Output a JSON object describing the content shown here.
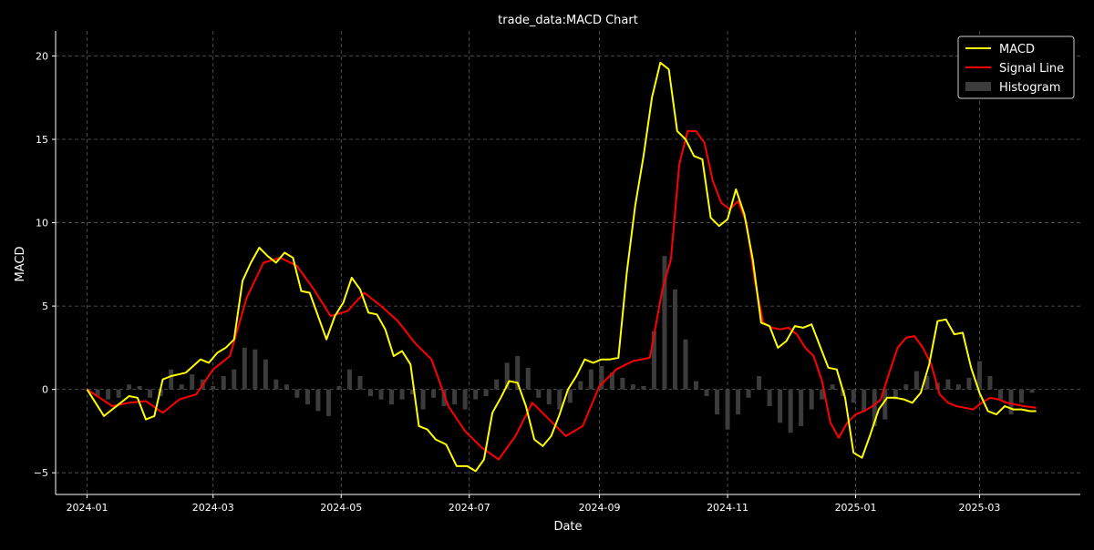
{
  "chart_data": {
    "type": "line",
    "title": "trade_data:MACD Chart",
    "xlabel": "Date",
    "ylabel": "MACD",
    "x_range": [
      "2023-12-17",
      "2025-04-18"
    ],
    "ylim": [
      -6.3,
      21.5
    ],
    "x_ticks": [
      "2024-01",
      "2024-03",
      "2024-05",
      "2024-07",
      "2024-09",
      "2024-11",
      "2025-01",
      "2025-03"
    ],
    "y_ticks": [
      -5,
      0,
      5,
      10,
      15,
      20
    ],
    "y_tick_labels": [
      "−5",
      "0",
      "5",
      "10",
      "15",
      "20"
    ],
    "grid": true,
    "legend_position": "top-right",
    "background": "#000000",
    "series": [
      {
        "name": "MACD",
        "color": "#ffff00",
        "x": [
          "2024-01-01",
          "2024-01-05",
          "2024-01-09",
          "2024-01-13",
          "2024-01-17",
          "2024-01-21",
          "2024-01-25",
          "2024-01-29",
          "2024-02-02",
          "2024-02-06",
          "2024-02-10",
          "2024-02-17",
          "2024-02-24",
          "2024-02-28",
          "2024-03-03",
          "2024-03-07",
          "2024-03-11",
          "2024-03-15",
          "2024-03-19",
          "2024-03-23",
          "2024-03-27",
          "2024-03-31",
          "2024-04-04",
          "2024-04-08",
          "2024-04-12",
          "2024-04-16",
          "2024-04-20",
          "2024-04-24",
          "2024-04-28",
          "2024-05-02",
          "2024-05-06",
          "2024-05-10",
          "2024-05-14",
          "2024-05-18",
          "2024-05-22",
          "2024-05-26",
          "2024-05-30",
          "2024-06-03",
          "2024-06-07",
          "2024-06-11",
          "2024-06-15",
          "2024-06-20",
          "2024-06-25",
          "2024-06-30",
          "2024-07-04",
          "2024-07-08",
          "2024-07-12",
          "2024-07-16",
          "2024-07-20",
          "2024-07-24",
          "2024-07-28",
          "2024-08-01",
          "2024-08-05",
          "2024-08-09",
          "2024-08-13",
          "2024-08-17",
          "2024-08-21",
          "2024-08-25",
          "2024-08-29",
          "2024-09-02",
          "2024-09-06",
          "2024-09-10",
          "2024-09-14",
          "2024-09-18",
          "2024-09-22",
          "2024-09-26",
          "2024-09-30",
          "2024-10-04",
          "2024-10-08",
          "2024-10-12",
          "2024-10-16",
          "2024-10-20",
          "2024-10-24",
          "2024-10-28",
          "2024-11-01",
          "2024-11-05",
          "2024-11-09",
          "2024-11-13",
          "2024-11-17",
          "2024-11-21",
          "2024-11-25",
          "2024-11-29",
          "2024-12-03",
          "2024-12-07",
          "2024-12-11",
          "2024-12-15",
          "2024-12-19",
          "2024-12-23",
          "2024-12-27",
          "2024-12-31",
          "2025-01-04",
          "2025-01-08",
          "2025-01-12",
          "2025-01-16",
          "2025-01-20",
          "2025-01-24",
          "2025-01-28",
          "2025-02-01",
          "2025-02-05",
          "2025-02-09",
          "2025-02-13",
          "2025-02-17",
          "2025-02-21",
          "2025-02-25",
          "2025-03-01",
          "2025-03-05",
          "2025-03-09",
          "2025-03-13",
          "2025-03-17",
          "2025-03-21",
          "2025-03-25",
          "2025-03-28"
        ],
        "values": [
          0.0,
          -0.8,
          -1.6,
          -1.2,
          -0.8,
          -0.4,
          -0.5,
          -1.8,
          -1.6,
          0.6,
          0.8,
          1.0,
          1.8,
          1.6,
          2.2,
          2.5,
          3.0,
          6.5,
          7.6,
          8.5,
          8.0,
          7.6,
          8.2,
          7.9,
          5.9,
          5.8,
          4.4,
          3.0,
          4.4,
          5.2,
          6.7,
          6.0,
          4.6,
          4.5,
          3.6,
          2.0,
          2.3,
          1.5,
          -2.2,
          -2.4,
          -3.0,
          -3.3,
          -4.6,
          -4.6,
          -4.9,
          -4.2,
          -1.4,
          -0.5,
          0.5,
          0.4,
          -1.0,
          -3.0,
          -3.4,
          -2.8,
          -1.5,
          0.0,
          0.8,
          1.8,
          1.6,
          1.8,
          1.8,
          1.9,
          7.0,
          11.0,
          14.0,
          17.5,
          19.6,
          19.2,
          15.5,
          15.0,
          14.0,
          13.8,
          10.3,
          9.8,
          10.2,
          12.0,
          10.5,
          7.8,
          4.0,
          3.8,
          2.5,
          2.9,
          3.8,
          3.7,
          3.9,
          2.6,
          1.3,
          1.2,
          -0.5,
          -3.8,
          -4.1,
          -2.7,
          -1.2,
          -0.5,
          -0.5,
          -0.6,
          -0.8,
          -0.2,
          1.5,
          4.1,
          4.2,
          3.3,
          3.4,
          1.3,
          -0.2,
          -1.3,
          -1.5,
          -1.0,
          -1.2,
          -1.2,
          -1.3,
          -1.3
        ]
      },
      {
        "name": "Signal Line",
        "color": "#ff0000",
        "x": [
          "2024-01-01",
          "2024-01-07",
          "2024-01-13",
          "2024-01-21",
          "2024-01-29",
          "2024-02-06",
          "2024-02-14",
          "2024-02-22",
          "2024-03-01",
          "2024-03-09",
          "2024-03-17",
          "2024-03-25",
          "2024-04-02",
          "2024-04-10",
          "2024-04-18",
          "2024-04-26",
          "2024-05-04",
          "2024-05-12",
          "2024-05-20",
          "2024-05-28",
          "2024-06-05",
          "2024-06-13",
          "2024-06-21",
          "2024-06-29",
          "2024-07-07",
          "2024-07-15",
          "2024-07-23",
          "2024-07-31",
          "2024-08-08",
          "2024-08-16",
          "2024-08-24",
          "2024-09-01",
          "2024-09-09",
          "2024-09-17",
          "2024-09-25",
          "2024-10-01",
          "2024-10-05",
          "2024-10-09",
          "2024-10-13",
          "2024-10-17",
          "2024-10-21",
          "2024-10-25",
          "2024-10-29",
          "2024-11-02",
          "2024-11-06",
          "2024-11-10",
          "2024-11-14",
          "2024-11-18",
          "2024-11-22",
          "2024-11-26",
          "2024-11-30",
          "2024-12-04",
          "2024-12-08",
          "2024-12-12",
          "2024-12-16",
          "2024-12-20",
          "2024-12-24",
          "2024-12-28",
          "2025-01-01",
          "2025-01-05",
          "2025-01-09",
          "2025-01-13",
          "2025-01-17",
          "2025-01-21",
          "2025-01-25",
          "2025-01-29",
          "2025-02-02",
          "2025-02-06",
          "2025-02-10",
          "2025-02-14",
          "2025-02-18",
          "2025-02-22",
          "2025-02-26",
          "2025-03-02",
          "2025-03-06",
          "2025-03-10",
          "2025-03-14",
          "2025-03-18",
          "2025-03-22",
          "2025-03-28"
        ],
        "values": [
          0.0,
          -0.5,
          -1.0,
          -0.8,
          -0.7,
          -1.4,
          -0.6,
          -0.3,
          1.2,
          2.0,
          5.5,
          7.6,
          7.9,
          7.4,
          6.0,
          4.4,
          4.7,
          5.8,
          5.0,
          4.1,
          2.8,
          1.8,
          -1.0,
          -2.5,
          -3.5,
          -4.2,
          -2.8,
          -0.8,
          -1.8,
          -2.8,
          -2.2,
          0.2,
          1.2,
          1.7,
          1.9,
          6.0,
          7.8,
          13.5,
          15.5,
          15.5,
          14.8,
          12.5,
          11.2,
          10.8,
          11.3,
          10.0,
          6.5,
          4.0,
          3.7,
          3.6,
          3.7,
          3.3,
          2.5,
          2.0,
          0.5,
          -2.0,
          -2.9,
          -2.0,
          -1.5,
          -1.3,
          -1.0,
          -0.6,
          1.0,
          2.5,
          3.1,
          3.2,
          2.5,
          1.5,
          -0.3,
          -0.8,
          -1.0,
          -1.1,
          -1.2,
          -0.8,
          -0.5,
          -0.6,
          -0.8,
          -0.9,
          -1.0,
          -1.1
        ]
      },
      {
        "name": "Histogram",
        "color": "#3c3c3c",
        "x": [
          "2024-01-01",
          "2024-01-06",
          "2024-01-11",
          "2024-01-16",
          "2024-01-21",
          "2024-01-26",
          "2024-01-31",
          "2024-02-05",
          "2024-02-10",
          "2024-02-15",
          "2024-02-20",
          "2024-02-25",
          "2024-03-01",
          "2024-03-06",
          "2024-03-11",
          "2024-03-16",
          "2024-03-21",
          "2024-03-26",
          "2024-03-31",
          "2024-04-05",
          "2024-04-10",
          "2024-04-15",
          "2024-04-20",
          "2024-04-25",
          "2024-04-30",
          "2024-05-05",
          "2024-05-10",
          "2024-05-15",
          "2024-05-20",
          "2024-05-25",
          "2024-05-30",
          "2024-06-04",
          "2024-06-09",
          "2024-06-14",
          "2024-06-19",
          "2024-06-24",
          "2024-06-29",
          "2024-07-04",
          "2024-07-09",
          "2024-07-14",
          "2024-07-19",
          "2024-07-24",
          "2024-07-29",
          "2024-08-03",
          "2024-08-08",
          "2024-08-13",
          "2024-08-18",
          "2024-08-23",
          "2024-08-28",
          "2024-09-02",
          "2024-09-07",
          "2024-09-12",
          "2024-09-17",
          "2024-09-22",
          "2024-09-27",
          "2024-10-02",
          "2024-10-07",
          "2024-10-12",
          "2024-10-17",
          "2024-10-22",
          "2024-10-27",
          "2024-11-01",
          "2024-11-06",
          "2024-11-11",
          "2024-11-16",
          "2024-11-21",
          "2024-11-26",
          "2024-12-01",
          "2024-12-06",
          "2024-12-11",
          "2024-12-16",
          "2024-12-21",
          "2024-12-26",
          "2024-12-31",
          "2025-01-05",
          "2025-01-10",
          "2025-01-15",
          "2025-01-20",
          "2025-01-25",
          "2025-01-30",
          "2025-02-04",
          "2025-02-09",
          "2025-02-14",
          "2025-02-19",
          "2025-02-24",
          "2025-03-01",
          "2025-03-06",
          "2025-03-11",
          "2025-03-16",
          "2025-03-21",
          "2025-03-26"
        ],
        "values": [
          0.0,
          -0.4,
          -0.6,
          -0.5,
          0.3,
          0.2,
          -0.5,
          -0.4,
          1.2,
          0.3,
          0.9,
          0.6,
          0.2,
          0.8,
          1.2,
          2.5,
          2.4,
          1.8,
          0.6,
          0.3,
          -0.5,
          -0.9,
          -1.3,
          -1.6,
          0.2,
          1.2,
          0.8,
          -0.4,
          -0.6,
          -0.9,
          -0.6,
          -0.3,
          -1.2,
          -0.5,
          -1.0,
          -0.9,
          -1.2,
          -0.6,
          -0.4,
          0.6,
          1.6,
          2.0,
          1.3,
          -0.5,
          -0.9,
          -1.2,
          -0.8,
          0.5,
          1.2,
          1.4,
          1.0,
          0.7,
          0.3,
          0.2,
          3.5,
          8.0,
          6.0,
          3.0,
          0.5,
          -0.4,
          -1.5,
          -2.4,
          -1.5,
          -0.5,
          0.8,
          -1.0,
          -2.0,
          -2.6,
          -2.2,
          -1.2,
          -0.6,
          0.3,
          -0.4,
          -0.8,
          -1.3,
          -2.2,
          -1.8,
          -0.6,
          0.3,
          1.1,
          0.8,
          0.4,
          0.6,
          0.3,
          0.7,
          1.7,
          0.8,
          -0.6,
          -1.5,
          -0.8,
          -0.2
        ]
      }
    ]
  }
}
